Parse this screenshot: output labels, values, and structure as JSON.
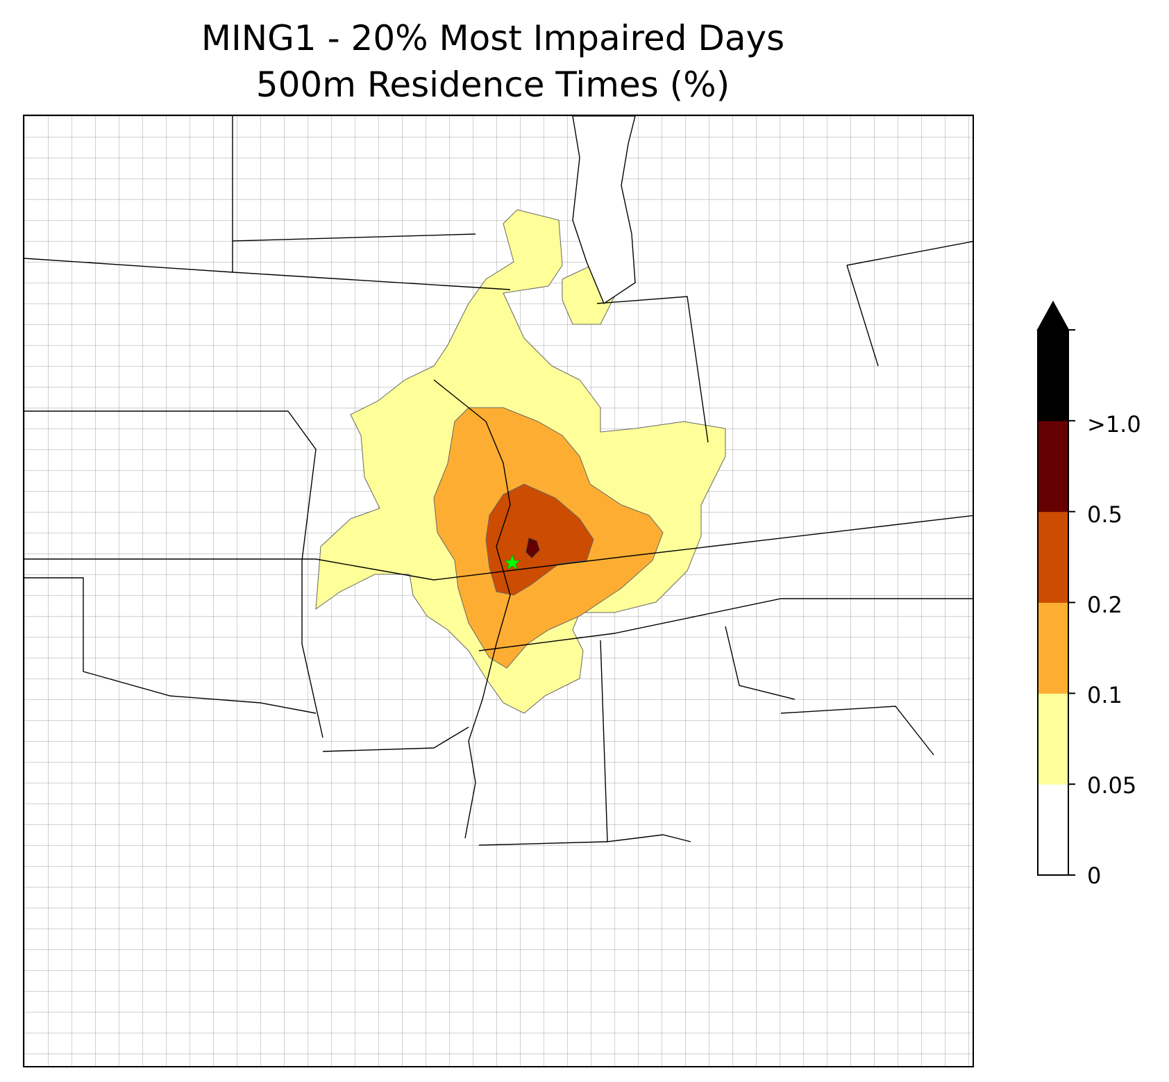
{
  "title": {
    "line1": "MING1 - 20% Most Impaired Days",
    "line2": "500m Residence Times (%)"
  },
  "map": {
    "site_marker_color": "#00ff00",
    "state_border_color": "#000000",
    "county_border_color": "#a0a0a0"
  },
  "colorbar": {
    "levels": [
      {
        "label": "0",
        "color": "#ffffff"
      },
      {
        "label": "0.05",
        "color": "#ffff99"
      },
      {
        "label": "0.1",
        "color": "#fdae32"
      },
      {
        "label": "0.2",
        "color": "#cc4c02"
      },
      {
        "label": "0.5",
        "color": "#660000"
      },
      {
        "label": ">1.0",
        "color": "#000000"
      }
    ],
    "extend": "max"
  }
}
